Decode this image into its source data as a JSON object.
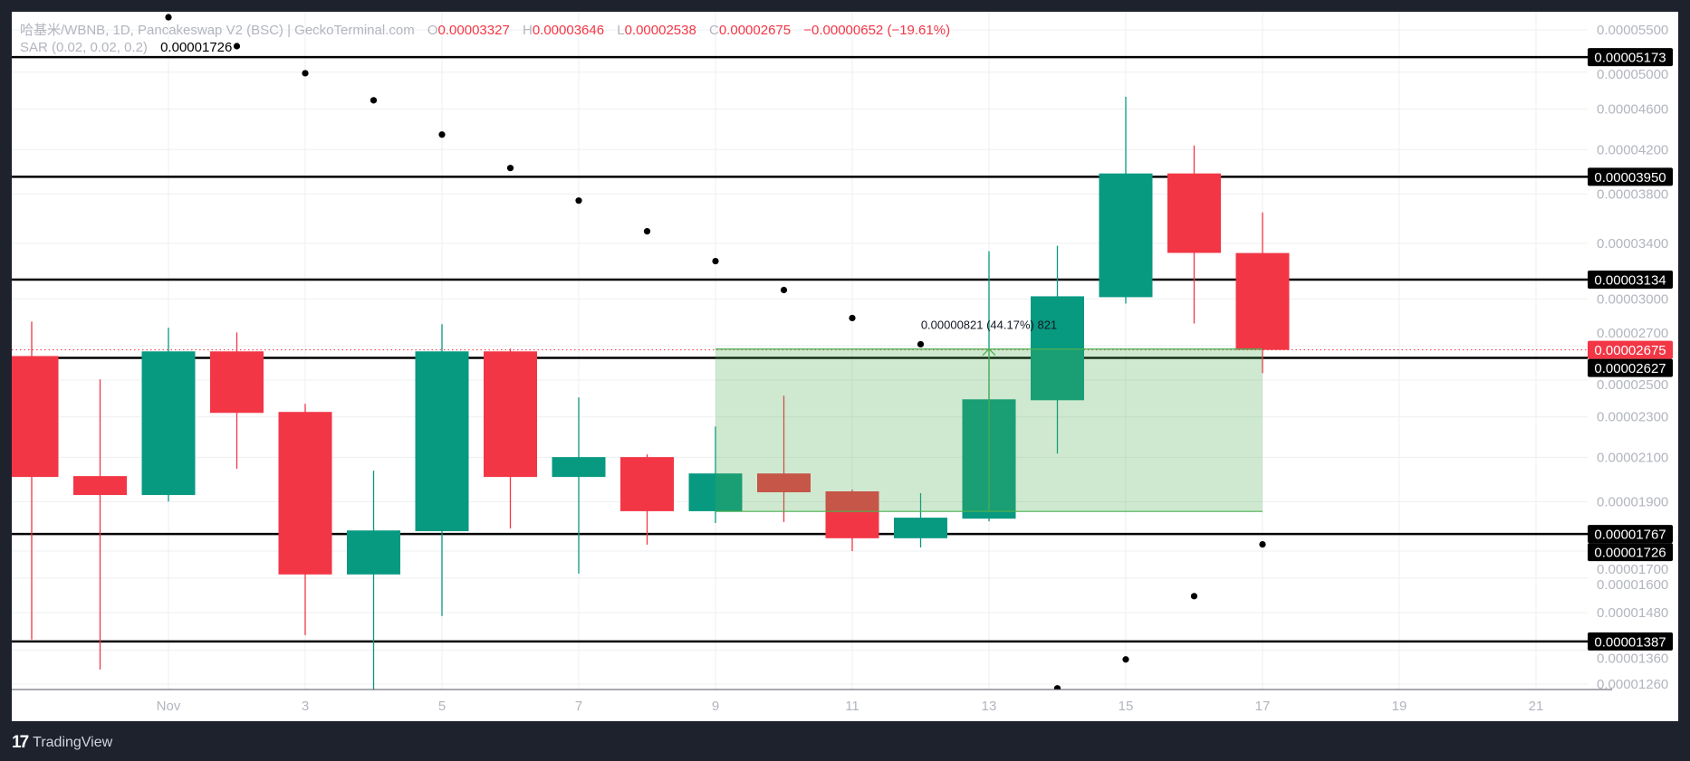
{
  "legend": {
    "title": "哈基米/WBNB, 1D, Pancakeswap V2 (BSC) | GeckoTerminal.com",
    "o_label": "O",
    "o_value": "0.00003327",
    "h_label": "H",
    "h_value": "0.00003646",
    "l_label": "L",
    "l_value": "0.00002538",
    "c_label": "C",
    "c_value": "0.00002675",
    "change": "−0.00000652 (−19.61%)",
    "sar_label": "SAR (0.02, 0.02, 0.2)",
    "sar_value": "0.00001726"
  },
  "branding": {
    "logo": "17",
    "name": "TradingView"
  },
  "colors": {
    "up": "#089981",
    "down": "#f23645",
    "sar": "#000000",
    "level_line": "#000000",
    "measure_fill": "#4caf50",
    "background": "#1e222d"
  },
  "chart_data": {
    "type": "candlestick",
    "title": "哈基米/WBNB, 1D, Pancakeswap V2 (BSC) | GeckoTerminal.com",
    "yscale": "log",
    "ylim": [
      1.26e-05,
      5.5e-05
    ],
    "grid": true,
    "x_tick_labels": [
      "Nov",
      "3",
      "5",
      "7",
      "9",
      "11",
      "13",
      "15",
      "17",
      "19",
      "21"
    ],
    "x_tick_dates": [
      "Nov 1",
      "Nov 3",
      "Nov 5",
      "Nov 7",
      "Nov 9",
      "Nov 11",
      "Nov 13",
      "Nov 15",
      "Nov 17",
      "Nov 19",
      "Nov 21"
    ],
    "y_tick_labels": [
      "0.00005500",
      "0.00005000",
      "0.00004600",
      "0.00004200",
      "0.00003800",
      "0.00003400",
      "0.00003000",
      "0.00002700",
      "0.00002500",
      "0.00002300",
      "0.00002100",
      "0.00001900",
      "0.00001700",
      "0.00001600",
      "0.00001480",
      "0.00001360",
      "0.00001260"
    ],
    "candles": [
      {
        "date": "Oct 30",
        "o": 2.638e-05,
        "h": 2.851e-05,
        "l": 1.393e-05,
        "c": 2.009e-05
      },
      {
        "date": "Oct 31",
        "o": 2.013e-05,
        "h": 2.503e-05,
        "l": 1.302e-05,
        "c": 1.929e-05
      },
      {
        "date": "Nov 1",
        "o": 1.929e-05,
        "h": 2.811e-05,
        "l": 1.901e-05,
        "c": 2.666e-05
      },
      {
        "date": "Nov 2",
        "o": 2.666e-05,
        "h": 2.782e-05,
        "l": 2.046e-05,
        "c": 2.321e-05
      },
      {
        "date": "Nov 3",
        "o": 2.326e-05,
        "h": 2.369e-05,
        "l": 1.407e-05,
        "c": 1.613e-05
      },
      {
        "date": "Nov 4",
        "o": 1.613e-05,
        "h": 2.038e-05,
        "l": 1.228e-05,
        "c": 1.781e-05
      },
      {
        "date": "Nov 5",
        "o": 1.778e-05,
        "h": 2.834e-05,
        "l": 1.469e-05,
        "c": 2.666e-05
      },
      {
        "date": "Nov 6",
        "o": 2.666e-05,
        "h": 2.682e-05,
        "l": 1.789e-05,
        "c": 2.009e-05
      },
      {
        "date": "Nov 7",
        "o": 2.009e-05,
        "h": 2.403e-05,
        "l": 1.616e-05,
        "c": 2.101e-05
      },
      {
        "date": "Nov 8",
        "o": 2.101e-05,
        "h": 2.114e-05,
        "l": 1.725e-05,
        "c": 1.86e-05
      },
      {
        "date": "Nov 9",
        "o": 1.86e-05,
        "h": 2.251e-05,
        "l": 1.811e-05,
        "c": 2.025e-05
      },
      {
        "date": "Nov 10",
        "o": 2.025e-05,
        "h": 2.413e-05,
        "l": 1.815e-05,
        "c": 1.941e-05
      },
      {
        "date": "Nov 11",
        "o": 1.945e-05,
        "h": 1.953e-05,
        "l": 1.7e-05,
        "c": 1.75e-05
      },
      {
        "date": "Nov 12",
        "o": 1.75e-05,
        "h": 1.937e-05,
        "l": 1.714e-05,
        "c": 1.833e-05
      },
      {
        "date": "Nov 13",
        "o": 1.829e-05,
        "h": 3.341e-05,
        "l": 1.818e-05,
        "c": 2.393e-05
      },
      {
        "date": "Nov 14",
        "o": 2.388e-05,
        "h": 3.382e-05,
        "l": 2.118e-05,
        "c": 3.018e-05
      },
      {
        "date": "Nov 15",
        "o": 3.012e-05,
        "h": 4.731e-05,
        "l": 2.969e-05,
        "c": 3.98e-05
      },
      {
        "date": "Nov 16",
        "o": 3.98e-05,
        "h": 4.239e-05,
        "l": 2.839e-05,
        "c": 3.328e-05
      },
      {
        "date": "Nov 17",
        "o": 3.327e-05,
        "h": 3.646e-05,
        "l": 2.538e-05,
        "c": 2.675e-05
      }
    ],
    "sar": [
      {
        "date": "Nov 1",
        "v": 5.659e-05
      },
      {
        "date": "Nov 2",
        "v": 5.302e-05
      },
      {
        "date": "Nov 3",
        "v": 4.988e-05
      },
      {
        "date": "Nov 4",
        "v": 4.693e-05
      },
      {
        "date": "Nov 5",
        "v": 4.344e-05
      },
      {
        "date": "Nov 6",
        "v": 4.029e-05
      },
      {
        "date": "Nov 7",
        "v": 3.744e-05
      },
      {
        "date": "Nov 8",
        "v": 3.494e-05
      },
      {
        "date": "Nov 9",
        "v": 3.267e-05
      },
      {
        "date": "Nov 10",
        "v": 3.061e-05
      },
      {
        "date": "Nov 11",
        "v": 2.874e-05
      },
      {
        "date": "Nov 12",
        "v": 2.709e-05
      },
      {
        "date": "Nov 14",
        "v": 1.248e-05
      },
      {
        "date": "Nov 15",
        "v": 1.332e-05
      },
      {
        "date": "Nov 16",
        "v": 1.536e-05
      },
      {
        "date": "Nov 17",
        "v": 1.726e-05
      }
    ],
    "horizontal_levels": [
      "0.00005173",
      "0.00003950",
      "0.00003134",
      "0.00002627",
      "0.00001767",
      "0.00001387"
    ],
    "last_price": "0.00002675",
    "sar_last": "0.00001726",
    "measure": {
      "from_date": "Nov 9",
      "to_date": "Nov 17",
      "arrow_date": "Nov 13",
      "low": 1.859e-05,
      "high": 2.68e-05,
      "label": "0.00000821 (44.17%) 821"
    }
  }
}
